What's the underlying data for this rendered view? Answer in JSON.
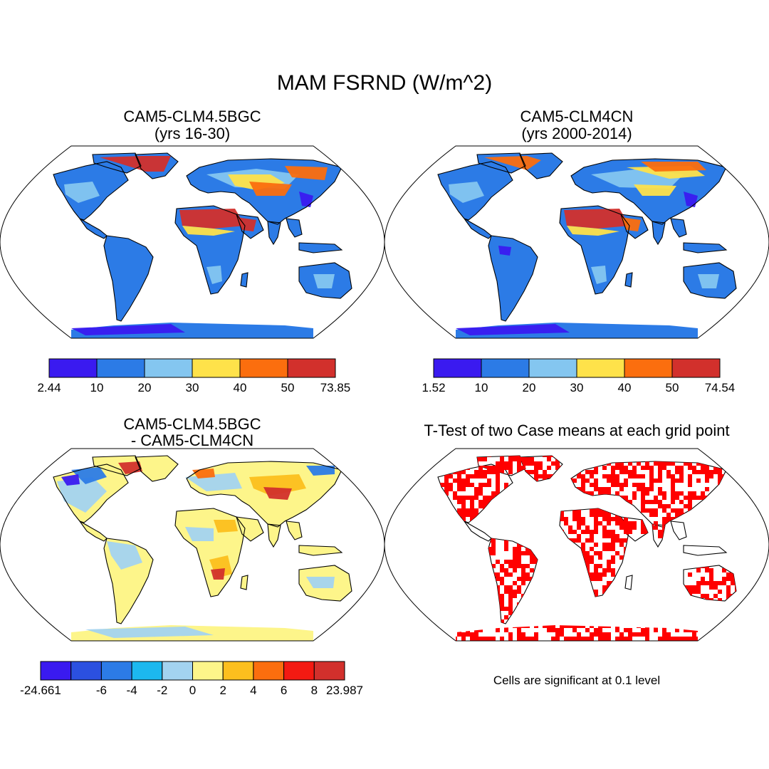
{
  "figure": {
    "title": "MAM FSRND (W/m^2)",
    "note": "Cells are significant at 0.1 level"
  },
  "chart_data": [
    {
      "type": "heatmap",
      "title": "CAM5-CLM4.5BGC",
      "subtitle": "(yrs 16-30)",
      "map_projection": "robinson",
      "colorbar": {
        "ticks": [
          "2.44",
          "10",
          "20",
          "30",
          "40",
          "50",
          "73.85"
        ],
        "colors": [
          "#3a1af0",
          "#2c7be6",
          "#84c6f0",
          "#fee24a",
          "#fb6e0e",
          "#d2302c"
        ]
      },
      "range": [
        2.44,
        73.85
      ]
    },
    {
      "type": "heatmap",
      "title": "CAM5-CLM4CN",
      "subtitle": "(yrs 2000-2014)",
      "map_projection": "robinson",
      "colorbar": {
        "ticks": [
          "1.52",
          "10",
          "20",
          "30",
          "40",
          "50",
          "74.54"
        ],
        "colors": [
          "#3a1af0",
          "#2c7be6",
          "#84c6f0",
          "#fee24a",
          "#fb6e0e",
          "#d2302c"
        ]
      },
      "range": [
        1.52,
        74.54
      ]
    },
    {
      "type": "heatmap",
      "title": "CAM5-CLM4.5BGC",
      "subtitle": "- CAM5-CLM4CN",
      "map_projection": "robinson",
      "colorbar": {
        "ticks": [
          "-24.661",
          "",
          "-6",
          "-4",
          "-2",
          "0",
          "2",
          "4",
          "6",
          "8",
          "23.987"
        ],
        "colors": [
          "#3a1af0",
          "#2b50e0",
          "#2c7be6",
          "#1cb8ef",
          "#a3d3f0",
          "#fdf58a",
          "#fcbf1e",
          "#fb6e0e",
          "#f41a12",
          "#d2302c"
        ]
      },
      "range": [
        -24.661,
        23.987
      ]
    },
    {
      "type": "heatmap",
      "title": "T-Test of two Case means at each grid point",
      "subtitle": "",
      "map_projection": "robinson",
      "significant_color": "#ff0000"
    }
  ]
}
